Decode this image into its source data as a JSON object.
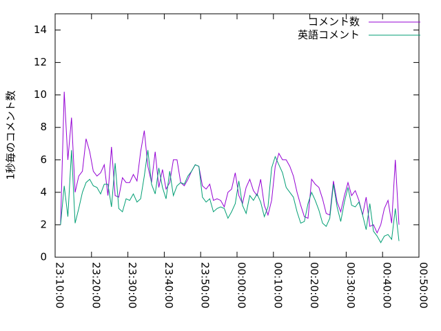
{
  "chart_data": {
    "type": "line",
    "ylabel": "1秒毎のコメント数",
    "x": [
      "23:11:30",
      "23:12:30",
      "23:13:30",
      "23:14:30",
      "23:15:30",
      "23:16:30",
      "23:17:30",
      "23:18:30",
      "23:19:30",
      "23:20:30",
      "23:21:30",
      "23:22:30",
      "23:23:30",
      "23:24:30",
      "23:25:30",
      "23:26:30",
      "23:27:30",
      "23:28:30",
      "23:29:30",
      "23:30:30",
      "23:31:30",
      "23:32:30",
      "23:33:30",
      "23:34:30",
      "23:35:30",
      "23:36:30",
      "23:37:30",
      "23:38:30",
      "23:39:30",
      "23:40:30",
      "23:41:30",
      "23:42:30",
      "23:43:30",
      "23:44:30",
      "23:45:30",
      "23:46:30",
      "23:47:30",
      "23:48:30",
      "23:49:30",
      "23:50:30",
      "23:51:30",
      "23:52:30",
      "23:53:30",
      "23:54:30",
      "23:55:30",
      "23:56:30",
      "23:57:30",
      "23:58:30",
      "23:59:30",
      "00:00:30",
      "00:01:30",
      "00:02:30",
      "00:03:30",
      "00:04:30",
      "00:05:30",
      "00:06:30",
      "00:07:30",
      "00:08:30",
      "00:09:30",
      "00:10:30",
      "00:11:30",
      "00:12:30",
      "00:13:30",
      "00:14:30",
      "00:15:30",
      "00:16:30",
      "00:17:30",
      "00:18:30",
      "00:19:30",
      "00:20:30",
      "00:21:30",
      "00:22:30",
      "00:23:30",
      "00:24:30",
      "00:25:30",
      "00:26:30",
      "00:27:30",
      "00:28:30",
      "00:29:30",
      "00:30:30",
      "00:31:30",
      "00:32:30",
      "00:33:30",
      "00:34:30",
      "00:35:30",
      "00:36:30",
      "00:37:30",
      "00:38:30",
      "00:39:30",
      "00:40:30",
      "00:41:30",
      "00:42:30",
      "00:43:30",
      "00:44:30"
    ],
    "series": [
      {
        "name": "コメント数",
        "color": "#9400d3",
        "values": [
          2.0,
          10.2,
          6.0,
          8.6,
          4.0,
          5.0,
          5.3,
          7.3,
          6.5,
          5.3,
          5.0,
          5.2,
          5.7,
          3.8,
          6.8,
          3.8,
          3.7,
          4.9,
          4.6,
          4.6,
          5.1,
          4.7,
          6.5,
          7.8,
          5.6,
          4.6,
          6.5,
          4.3,
          5.4,
          4.2,
          4.6,
          6.0,
          6.0,
          4.6,
          4.4,
          4.8,
          5.3,
          5.7,
          5.6,
          4.4,
          4.2,
          4.5,
          3.5,
          3.6,
          3.5,
          3.1,
          4.0,
          4.2,
          5.2,
          3.8,
          3.3,
          4.3,
          4.8,
          4.1,
          3.8,
          4.8,
          3.2,
          2.6,
          3.5,
          5.6,
          6.4,
          6.0,
          6.0,
          5.6,
          5.0,
          4.0,
          3.2,
          2.5,
          2.4,
          4.8,
          4.5,
          4.3,
          3.6,
          2.7,
          2.6,
          4.7,
          3.4,
          2.8,
          3.8,
          4.6,
          3.8,
          4.1,
          3.5,
          2.6,
          3.7,
          1.9,
          2.0,
          1.5,
          2.0,
          3.0,
          3.5,
          2.1,
          6.0,
          2.0
        ]
      },
      {
        "name": "英語コメント",
        "color": "#009e73",
        "values": [
          2.0,
          4.4,
          2.5,
          6.6,
          2.1,
          3.0,
          4.0,
          4.6,
          4.8,
          4.4,
          4.3,
          3.9,
          4.5,
          4.5,
          3.1,
          5.8,
          3.0,
          2.8,
          3.6,
          3.5,
          3.9,
          3.4,
          3.6,
          5.0,
          6.6,
          4.5,
          3.9,
          5.5,
          4.3,
          3.6,
          5.3,
          3.8,
          4.4,
          4.6,
          4.5,
          5.0,
          5.3,
          5.7,
          5.6,
          3.7,
          3.4,
          3.6,
          2.8,
          3.0,
          3.1,
          3.0,
          2.4,
          2.8,
          3.3,
          4.7,
          3.2,
          2.7,
          3.8,
          3.5,
          3.9,
          3.4,
          2.5,
          3.1,
          5.5,
          6.2,
          5.7,
          5.2,
          4.3,
          4.0,
          3.7,
          2.8,
          2.1,
          2.2,
          3.3,
          4.0,
          3.5,
          2.9,
          2.1,
          1.9,
          2.4,
          4.5,
          3.1,
          2.2,
          3.4,
          4.3,
          3.2,
          3.1,
          3.4,
          2.6,
          1.7,
          3.3,
          1.6,
          1.3,
          0.9,
          1.3,
          1.4,
          1.1,
          3.0,
          1.0
        ]
      }
    ],
    "xlim": [
      "23:10:00",
      "00:50:00"
    ],
    "xticks": [
      "23:10:00",
      "23:20:00",
      "23:30:00",
      "23:40:00",
      "23:50:00",
      "00:00:00",
      "00:10:00",
      "00:20:00",
      "00:30:00",
      "00:40:00",
      "00:50:00"
    ],
    "ylim": [
      0,
      15
    ],
    "yticks": [
      0,
      2,
      4,
      6,
      8,
      10,
      12,
      14
    ],
    "legend": "top-right",
    "grid": false
  }
}
